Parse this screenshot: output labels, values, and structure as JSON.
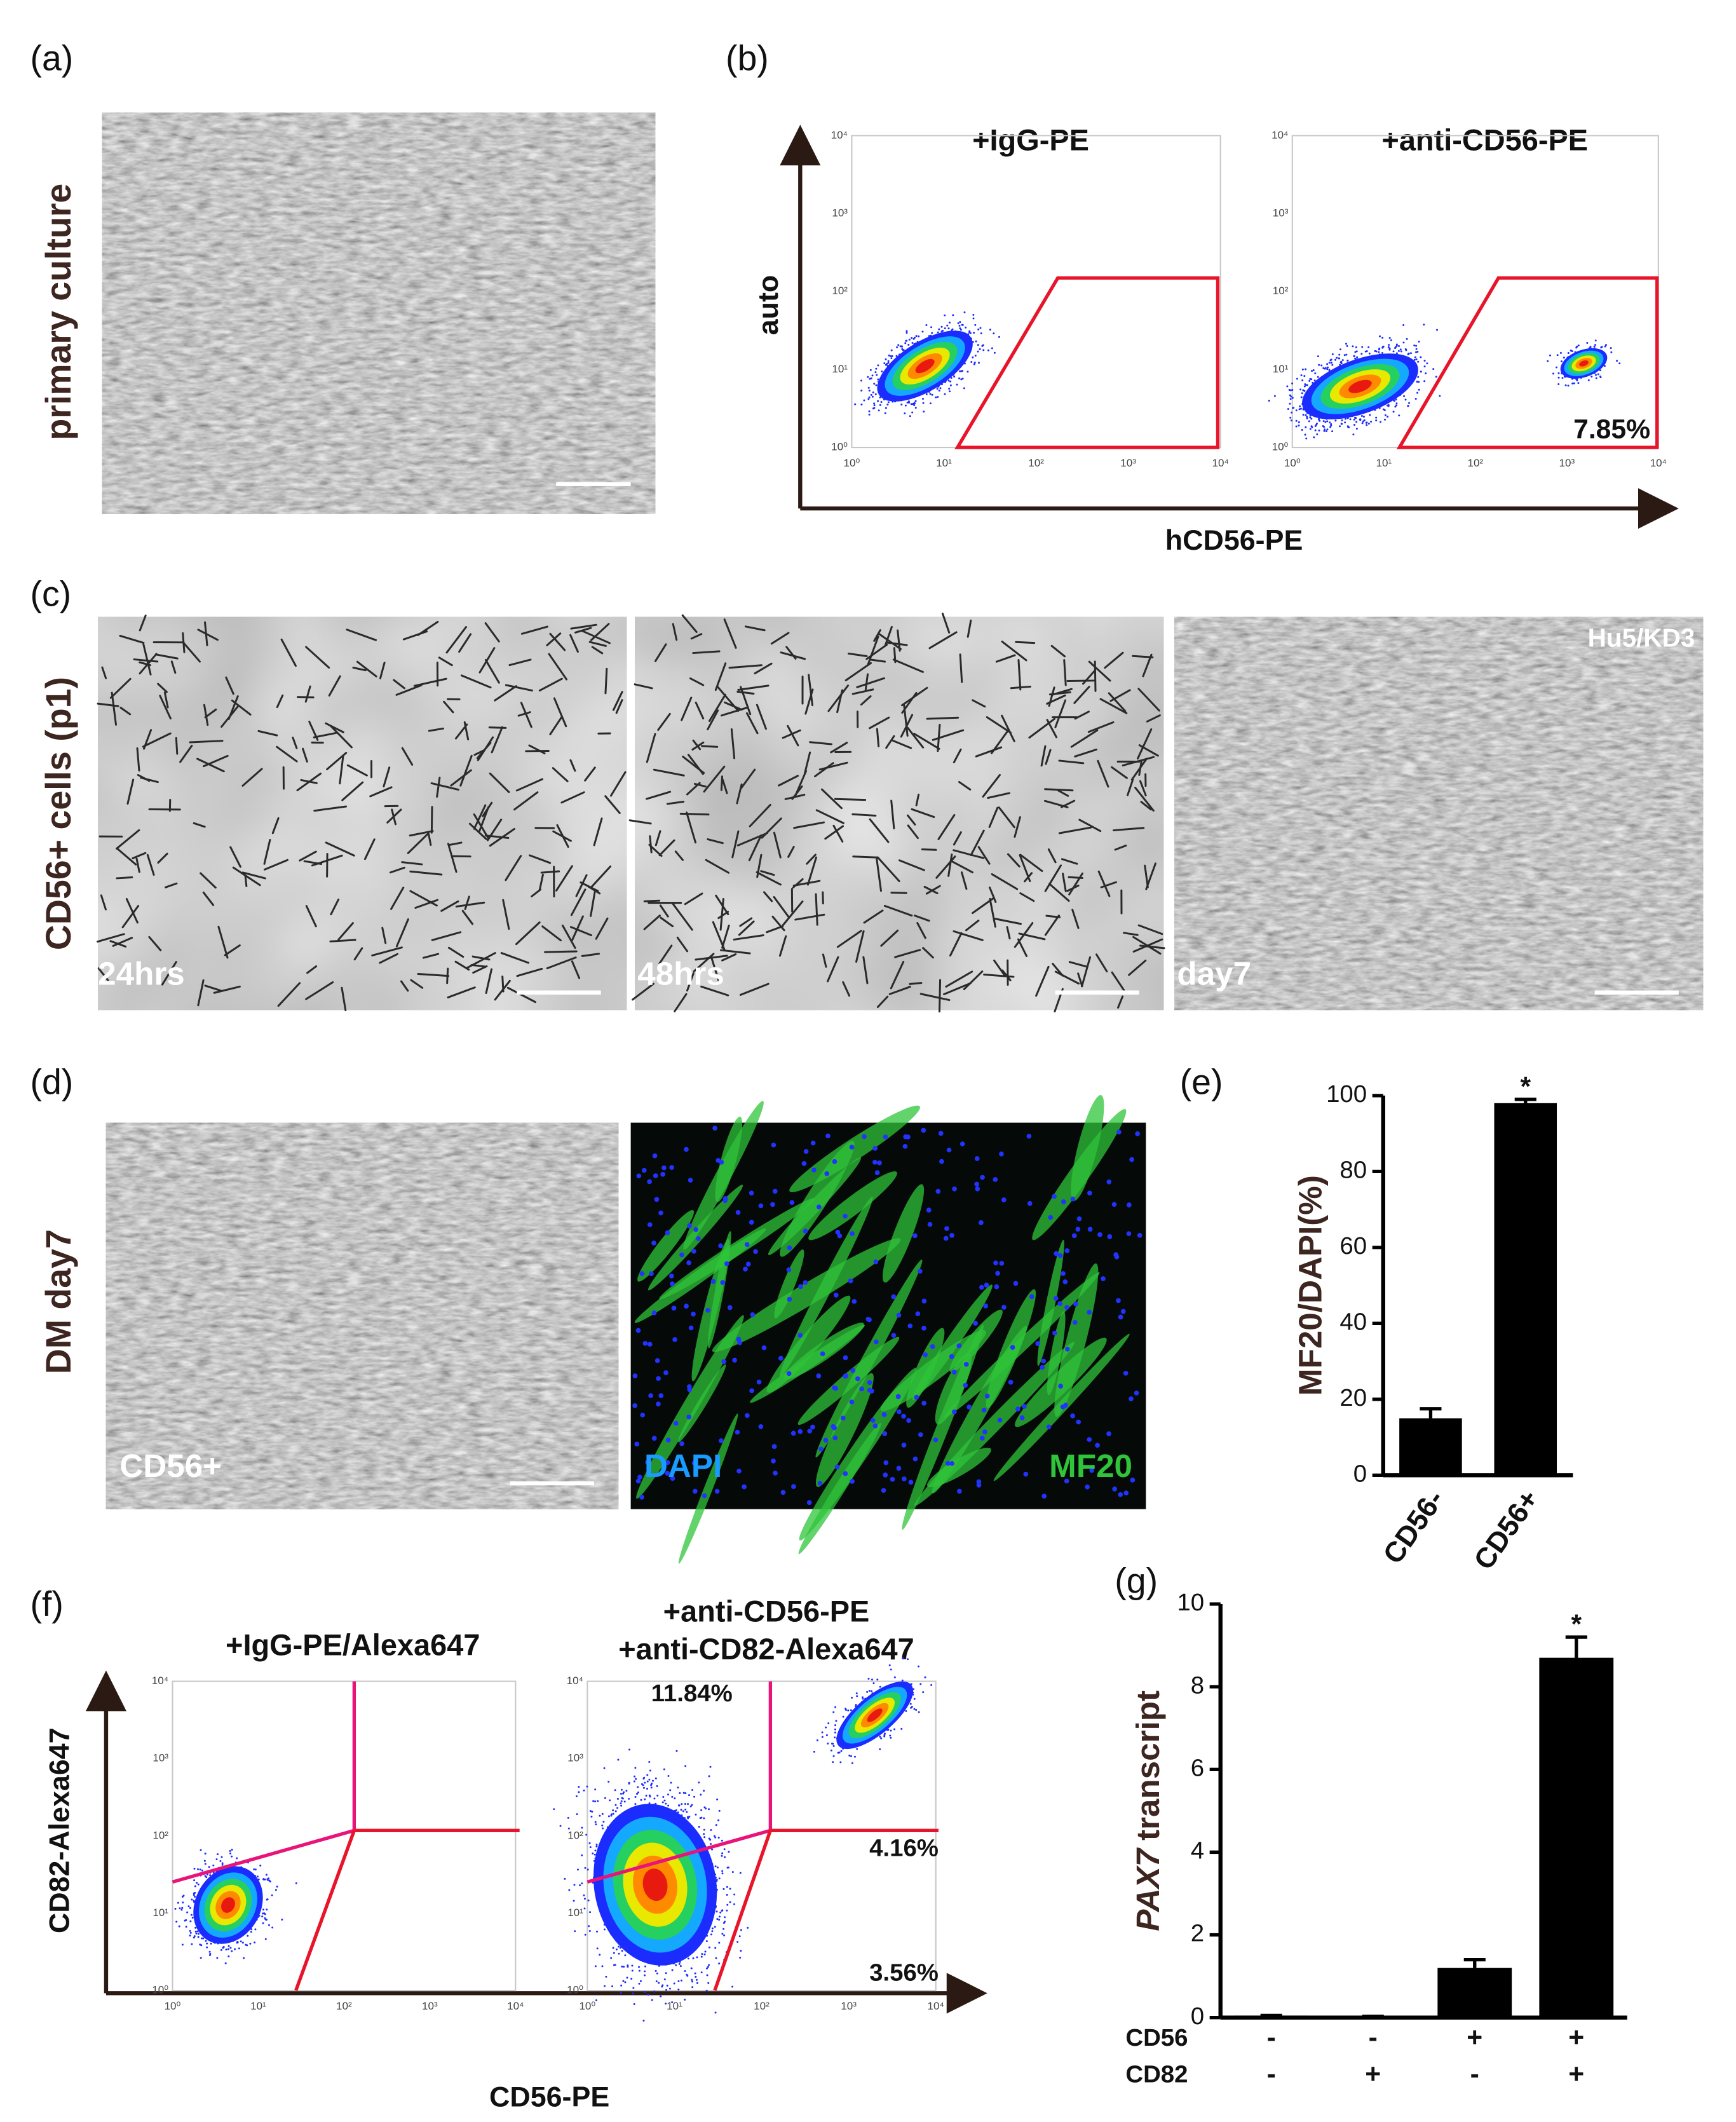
{
  "panels": {
    "a": {
      "label": "(a)",
      "side_label": "primary culture"
    },
    "b": {
      "label": "(b)",
      "y_axis": "auto",
      "x_axis": "hCD56-PE",
      "axis_ticks": [
        "10⁰",
        "10¹",
        "10²",
        "10³",
        "10⁴"
      ],
      "plots": [
        {
          "title": "+IgG-PE"
        },
        {
          "title": "+anti-CD56-PE",
          "gate_percent": "7.85%"
        }
      ]
    },
    "c": {
      "label": "(c)",
      "side_label": "CD56+ cells (p1)",
      "images": [
        "24hrs",
        "48hrs",
        "day7"
      ],
      "inset": "Hu5/KD3"
    },
    "d": {
      "label": "(d)",
      "side_label": "DM day7",
      "phase_label": "CD56+",
      "stain_labels": [
        "DAPI",
        "MF20"
      ]
    },
    "e": {
      "label": "(e)"
    },
    "f": {
      "label": "(f)",
      "y_axis": "CD82-Alexa647",
      "x_axis": "CD56-PE",
      "axis_ticks": [
        "10⁰",
        "10¹",
        "10²",
        "10³",
        "10⁴"
      ],
      "plots": [
        {
          "title_lines": [
            "+IgG-PE/Alexa647"
          ]
        },
        {
          "title_lines": [
            "+anti-CD56-PE",
            "+anti-CD82-Alexa647"
          ],
          "quadrant_percents": [
            "11.84%",
            "4.16%",
            "3.56%"
          ]
        }
      ]
    },
    "g": {
      "label": "(g)"
    }
  },
  "chart_data": [
    {
      "type": "bar",
      "categories": [
        "CD56-",
        "CD56+"
      ],
      "values": [
        15,
        98
      ],
      "errors": [
        2.5,
        1
      ],
      "color": "#000000",
      "ylabel": "MF20/DAPI(%)",
      "ylim": [
        0,
        100
      ],
      "yticks": [
        0,
        20,
        40,
        60,
        80,
        100
      ],
      "annotations": [
        {
          "text": "*",
          "category": 1
        }
      ]
    },
    {
      "type": "bar",
      "categories": [
        null,
        null,
        null,
        null
      ],
      "values": [
        0.05,
        0.03,
        1.2,
        8.7
      ],
      "errors": [
        0,
        0,
        0.2,
        0.5
      ],
      "color": "#000000",
      "ylabel_italic": "PAX7",
      "ylabel": "transcript",
      "ylim": [
        0,
        10
      ],
      "yticks": [
        0,
        2,
        4,
        6,
        8,
        10
      ],
      "annotations": [
        {
          "text": "*",
          "category": 3
        }
      ],
      "conditions": [
        {
          "name": "CD56",
          "signs": [
            "-",
            "-",
            "+",
            "+"
          ]
        },
        {
          "name": "CD82",
          "signs": [
            "-",
            "+",
            "-",
            "+"
          ]
        }
      ]
    }
  ]
}
